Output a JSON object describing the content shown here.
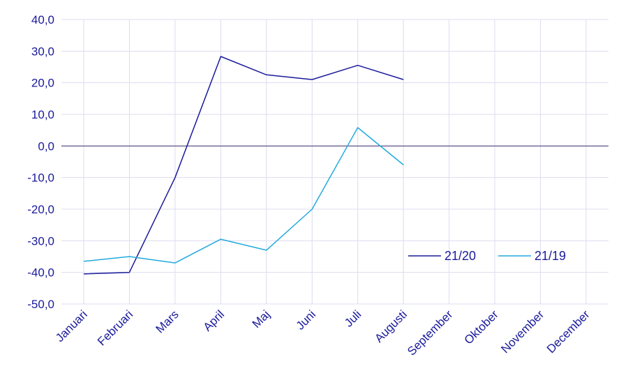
{
  "chart_data": {
    "type": "line",
    "categories": [
      "Januari",
      "Februari",
      "Mars",
      "April",
      "Maj",
      "Juni",
      "Juli",
      "Augusti",
      "September",
      "Oktober",
      "November",
      "December"
    ],
    "y_ticks": [
      "40,0",
      "30,0",
      "20,0",
      "10,0",
      "0,0",
      "-10,0",
      "-20,0",
      "-30,0",
      "-40,0",
      "-50,0"
    ],
    "ylim": [
      -50,
      40
    ],
    "grid": true,
    "legend_position": "right-center",
    "series": [
      {
        "name": "21/20",
        "color": "#1a1a9c",
        "values": [
          -40.5,
          -40.0,
          -10.0,
          28.3,
          22.5,
          21.0,
          25.5,
          21.0,
          null,
          null,
          null,
          null
        ]
      },
      {
        "name": "21/19",
        "color": "#22aadd",
        "values": [
          -36.5,
          -35.0,
          -37.0,
          -29.5,
          -33.0,
          -20.0,
          5.8,
          -6.0,
          null,
          null,
          null,
          null
        ]
      }
    ]
  }
}
